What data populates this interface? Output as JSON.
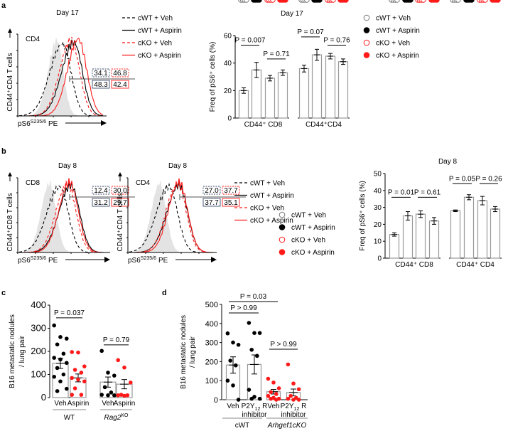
{
  "panel_labels": [
    "a",
    "b",
    "c",
    "d"
  ],
  "colors": {
    "black": "#000000",
    "red": "#ff1a1a",
    "isotype": "#e3e3e3",
    "bar_outline": "#9a9a9a",
    "box_blue": "#3a4a6b"
  },
  "histograms": [
    {
      "title": "Day 17",
      "population": "CD4",
      "ylabel": "CD44⁺CD4 T cells",
      "xlabel_main": "pS6",
      "xlabel_sup": "S235/6",
      "xlabel_tail": "PE",
      "gate_values": [
        {
          "text": "34.1",
          "series": "cWT + Veh"
        },
        {
          "text": "46.8",
          "series": "cKO + Veh"
        },
        {
          "text": "48.3",
          "series": "cWT + Aspirin"
        },
        {
          "text": "42.4",
          "series": "cKO + Aspirin"
        }
      ]
    },
    {
      "title": "Day 8",
      "population": "CD8",
      "ylabel": "CD44⁺CD8 T cells",
      "xlabel_main": "pS6",
      "xlabel_sup": "S235/6",
      "xlabel_tail": "PE",
      "gate_values": [
        {
          "text": "12.4",
          "series": "cWT + Veh"
        },
        {
          "text": "30.0",
          "series": "cKO + Veh"
        },
        {
          "text": "31.2",
          "series": "cWT + Aspirin"
        },
        {
          "text": "29.7",
          "series": "cKO + Aspirin"
        }
      ]
    },
    {
      "title": "Day 8",
      "population": "CD4",
      "ylabel": "CD44⁺CD4 T cells",
      "xlabel_main": "pS6",
      "xlabel_sup": "S235/6",
      "xlabel_tail": "PE",
      "gate_values": [
        {
          "text": "27.0",
          "series": "cWT + Veh"
        },
        {
          "text": "37.7",
          "series": "cKO + Veh"
        },
        {
          "text": "37.7",
          "series": "cWT + Aspirin"
        },
        {
          "text": "35.1",
          "series": "cKO + Aspirin"
        }
      ]
    }
  ],
  "line_legend": [
    "cWT + Veh",
    "cWT + Aspirin",
    "cKO + Veh",
    "cKO + Aspirin"
  ],
  "dot_legend": [
    "cWT + Veh",
    "cWT + Aspirin",
    "cKO + Veh",
    "cKO + Aspirin"
  ],
  "chart_data": [
    {
      "type": "bar",
      "panel": "a",
      "title": "Day 17",
      "ylabel": "Freq of pS6⁺ cells (%)",
      "ylim": [
        0,
        60
      ],
      "yticks": [
        0,
        20,
        40,
        60
      ],
      "categories": [
        "CD44⁺ CD8",
        "CD44⁺CD4"
      ],
      "series": [
        "cWT + Veh",
        "cWT + Aspirin",
        "cKO + Veh",
        "cKO + Aspirin"
      ],
      "groups": [
        {
          "means": [
            20,
            35,
            29,
            33
          ],
          "sem": [
            2,
            5.5,
            2,
            2
          ],
          "points": [
            [
              24,
              21,
              19,
              14,
              22
            ],
            [
              50,
              37,
              30,
              24
            ],
            [
              34,
              31,
              27,
              29,
              28
            ],
            [
              38,
              34,
              32,
              34,
              33
            ]
          ]
        },
        {
          "means": [
            36,
            46,
            45,
            41
          ],
          "sem": [
            2.5,
            4,
            2,
            2
          ],
          "points": [
            [
              40,
              38,
              34,
              28,
              39
            ],
            [
              56,
              48,
              44,
              35
            ],
            [
              51,
              47,
              44,
              43,
              43
            ],
            [
              43,
              43,
              42,
              35
            ]
          ]
        }
      ],
      "comparisons": [
        {
          "group": 0,
          "from": 0,
          "to": 1,
          "label": "P = 0.007",
          "level": 53
        },
        {
          "group": 0,
          "from": 2,
          "to": 3,
          "label": "P = 0.71",
          "level": 43
        },
        {
          "group": 1,
          "from": 0,
          "to": 1,
          "label": "P = 0.07",
          "level": 59
        },
        {
          "group": 1,
          "from": 2,
          "to": 3,
          "label": "P = 0.76",
          "level": 53
        }
      ]
    },
    {
      "type": "bar",
      "panel": "b",
      "title": "Day 8",
      "ylabel": "Freq of pS6⁺ cells (%)",
      "ylim": [
        0,
        50
      ],
      "yticks": [
        0,
        10,
        20,
        30,
        40,
        50
      ],
      "categories": [
        "CD44⁺ CD8",
        "CD44⁺ CD4"
      ],
      "series": [
        "cWT + Veh",
        "cWT + Aspirin",
        "cKO + Veh",
        "cKO + Aspirin"
      ],
      "groups": [
        {
          "means": [
            14,
            25,
            26,
            22
          ],
          "sem": [
            1,
            2.5,
            2,
            2
          ],
          "points": [
            [
              17,
              14,
              13,
              13
            ],
            [
              31,
              30,
              27,
              25,
              22
            ],
            [
              30,
              32,
              28,
              23
            ],
            [
              30,
              24,
              20,
              20,
              21
            ]
          ]
        },
        {
          "means": [
            28,
            36,
            34,
            29
          ],
          "sem": [
            0.5,
            1.5,
            2.5,
            1.5
          ],
          "points": [
            [
              30,
              28,
              28,
              28
            ],
            [
              38,
              37,
              36,
              35,
              30
            ],
            [
              38,
              38,
              32,
              28
            ],
            [
              35,
              32,
              28,
              28,
              29
            ]
          ]
        }
      ],
      "comparisons": [
        {
          "group": 0,
          "from": 0,
          "to": 1,
          "label": "P = 0.01",
          "level": 36
        },
        {
          "group": 0,
          "from": 2,
          "to": 3,
          "label": "P = 0.61",
          "level": 36
        },
        {
          "group": 1,
          "from": 0,
          "to": 1,
          "label": "P = 0.05",
          "level": 44
        },
        {
          "group": 1,
          "from": 2,
          "to": 3,
          "label": "P = 0.26",
          "level": 44
        }
      ]
    },
    {
      "type": "bar",
      "panel": "c",
      "ylabel": "B16 metastatic nodules / lung pair",
      "ylabel_lines": [
        "B16 metastatic nodules",
        "/ lung pair"
      ],
      "ylim": [
        0,
        400
      ],
      "yticks": [
        0,
        100,
        200,
        300,
        400
      ],
      "bars": [
        {
          "label": "Veh",
          "group": "WT",
          "color": "black",
          "mean": 148,
          "sem": 22,
          "points": [
            312,
            262,
            255,
            230,
            190,
            172,
            165,
            150,
            128,
            100,
            90,
            70,
            38,
            28
          ]
        },
        {
          "label": "Aspirin",
          "group": "WT",
          "color": "red",
          "mean": 85,
          "sem": 17,
          "points": [
            197,
            195,
            135,
            120,
            108,
            85,
            78,
            70,
            40,
            12,
            12
          ]
        },
        {
          "label": "Veh",
          "group": "Rag2KO",
          "color": "black",
          "mean": 67,
          "sem": 22,
          "points": [
            202,
            108,
            95,
            45,
            22,
            12,
            10,
            10
          ]
        },
        {
          "label": "Aspirin",
          "group": "Rag2KO",
          "color": "red",
          "mean": 58,
          "sem": 20,
          "points": [
            162,
            130,
            65,
            12,
            10,
            10,
            8
          ]
        }
      ],
      "group_labels": [
        {
          "text": "WT"
        },
        {
          "text": "Rag2",
          "sup": "KO"
        }
      ],
      "comparisons": [
        {
          "from": 0,
          "to": 1,
          "label": "P = 0.037",
          "level": 345
        },
        {
          "from": 2,
          "to": 3,
          "label": "P = 0.79",
          "level": 228
        }
      ]
    },
    {
      "type": "bar",
      "panel": "d",
      "ylabel": "B16 metastatic nodules / lung pair",
      "ylabel_lines": [
        "B16 metastatic nodules",
        "/ lung pair"
      ],
      "ylim": [
        0,
        500
      ],
      "yticks": [
        0,
        100,
        200,
        300,
        400,
        500
      ],
      "bars": [
        {
          "label": "Veh",
          "group": "cWT",
          "color": "black",
          "mean": 182,
          "sem": 43,
          "points": [
            348,
            300,
            288,
            205,
            180,
            100,
            75,
            0
          ]
        },
        {
          "label": "P2Y12 R inhibitor",
          "group": "cWT",
          "color": "black",
          "mean": 185,
          "sem": 50,
          "points": [
            403,
            350,
            350,
            262,
            230,
            52,
            15,
            5,
            5
          ]
        },
        {
          "label": "Veh",
          "group": "Arhgef1cKO",
          "color": "red",
          "mean": 42,
          "sem": 12,
          "points": [
            110,
            90,
            60,
            40,
            30,
            20,
            10,
            5,
            5,
            0
          ]
        },
        {
          "label": "P2Y12 R inhibitor",
          "group": "Arhgef1cKO",
          "color": "red",
          "mean": 38,
          "sem": 18,
          "points": [
            185,
            85,
            55,
            20,
            10,
            5,
            0,
            0
          ]
        }
      ],
      "group_labels": [
        {
          "text": "cWT"
        },
        {
          "text": "Arhgef1",
          "tail": "cKO"
        }
      ],
      "comparisons": [
        {
          "from": 0,
          "to": 2,
          "label": "P = 0.03",
          "level": 515
        },
        {
          "from": 0,
          "to": 1,
          "label": "P > 0.99",
          "level": 455
        },
        {
          "from": 2,
          "to": 3,
          "label": "P > 0.99",
          "level": 265
        }
      ]
    }
  ]
}
